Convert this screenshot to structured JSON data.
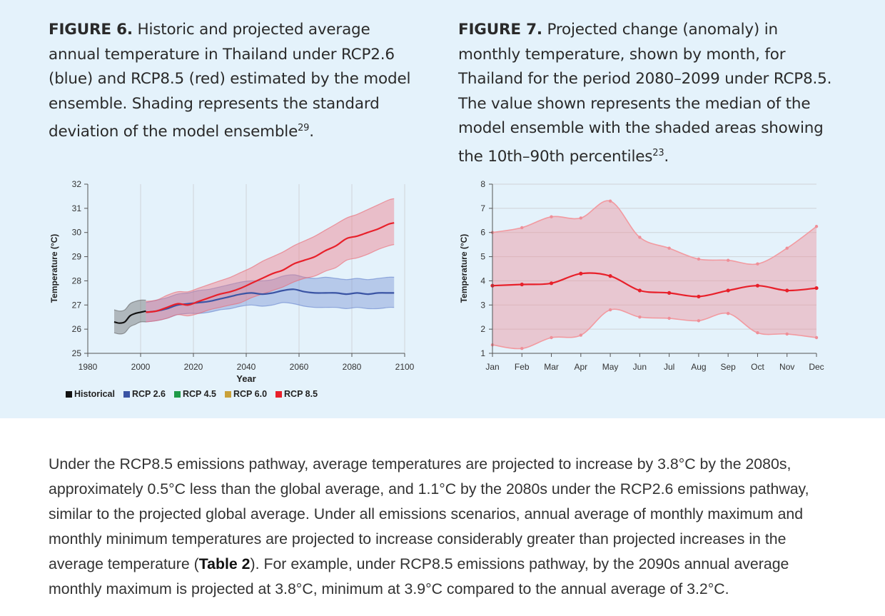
{
  "figure6": {
    "caption_label": "FIGURE 6.",
    "caption_text": "Historic and projected average annual temperature in Thailand under RCP2.6 (blue) and RCP8.5 (red) estimated by the model ensemble. Shading represents the standard deviation of the model ensemble",
    "caption_sup": "29",
    "caption_end": "."
  },
  "figure7": {
    "caption_label": "FIGURE 7.",
    "caption_text": "Projected change (anomaly) in monthly temperature, shown by month, for Thailand for the period 2080–2099 under RCP8.5. The value shown represents the median of the model ensemble with the shaded areas showing the 10th–90th percentiles",
    "caption_sup": "23",
    "caption_end": "."
  },
  "chart_data": [
    {
      "type": "line",
      "xlabel": "Year",
      "ylabel": "Temperature (°C)",
      "xlim": [
        1980,
        2100
      ],
      "ylim": [
        25,
        32
      ],
      "xticks": [
        1980,
        2000,
        2020,
        2040,
        2060,
        2080,
        2100
      ],
      "yticks": [
        25,
        26,
        27,
        28,
        29,
        30,
        31,
        32
      ],
      "grid": "vertical",
      "legend_position": "bottom",
      "legend": [
        {
          "name": "Historical",
          "color": "#111111"
        },
        {
          "name": "RCP 2.6",
          "color": "#3a54a4"
        },
        {
          "name": "RCP 4.5",
          "color": "#1e9a48"
        },
        {
          "name": "RCP 6.0",
          "color": "#c9a13a"
        },
        {
          "name": "RCP 8.5",
          "color": "#e8202a"
        }
      ],
      "series": [
        {
          "name": "Historical",
          "color": "#111111",
          "x": [
            1990,
            1992,
            1994,
            1996,
            1998,
            2000,
            2002
          ],
          "y": [
            26.3,
            26.25,
            26.3,
            26.55,
            26.65,
            26.7,
            26.75
          ],
          "band_upper": [
            26.8,
            26.75,
            26.8,
            27.05,
            27.15,
            27.2,
            27.2
          ],
          "band_lower": [
            25.85,
            25.8,
            25.85,
            26.1,
            26.2,
            26.3,
            26.3
          ]
        },
        {
          "name": "RCP 2.6",
          "color": "#3a54a4",
          "x": [
            2002,
            2006,
            2010,
            2014,
            2018,
            2022,
            2026,
            2030,
            2034,
            2038,
            2042,
            2046,
            2050,
            2054,
            2058,
            2062,
            2066,
            2070,
            2074,
            2078,
            2082,
            2086,
            2090,
            2094,
            2096
          ],
          "y": [
            26.7,
            26.75,
            26.85,
            27.0,
            27.05,
            27.1,
            27.15,
            27.25,
            27.35,
            27.45,
            27.5,
            27.45,
            27.5,
            27.6,
            27.65,
            27.55,
            27.5,
            27.5,
            27.5,
            27.45,
            27.5,
            27.45,
            27.5,
            27.5,
            27.5
          ],
          "band_upper": [
            27.1,
            27.2,
            27.3,
            27.45,
            27.5,
            27.6,
            27.65,
            27.75,
            27.85,
            27.95,
            28.0,
            28.0,
            28.05,
            28.2,
            28.25,
            28.15,
            28.1,
            28.15,
            28.1,
            28.05,
            28.1,
            28.05,
            28.1,
            28.15,
            28.15
          ],
          "band_lower": [
            26.3,
            26.35,
            26.45,
            26.6,
            26.65,
            26.65,
            26.7,
            26.8,
            26.85,
            26.95,
            27.0,
            26.95,
            27.0,
            27.1,
            27.05,
            26.95,
            26.9,
            26.9,
            26.9,
            26.85,
            26.9,
            26.85,
            26.85,
            26.9,
            26.9
          ]
        },
        {
          "name": "RCP 8.5",
          "color": "#e8202a",
          "x": [
            2002,
            2006,
            2010,
            2014,
            2018,
            2022,
            2026,
            2030,
            2034,
            2038,
            2042,
            2046,
            2050,
            2054,
            2058,
            2062,
            2066,
            2070,
            2074,
            2078,
            2082,
            2086,
            2090,
            2094,
            2096
          ],
          "y": [
            26.7,
            26.75,
            26.9,
            27.05,
            27.0,
            27.15,
            27.3,
            27.45,
            27.55,
            27.7,
            27.9,
            28.1,
            28.3,
            28.45,
            28.7,
            28.85,
            29.0,
            29.25,
            29.45,
            29.75,
            29.85,
            30.0,
            30.15,
            30.35,
            30.4
          ],
          "band_upper": [
            27.15,
            27.2,
            27.4,
            27.55,
            27.55,
            27.7,
            27.85,
            28.0,
            28.15,
            28.35,
            28.55,
            28.8,
            29.0,
            29.2,
            29.45,
            29.65,
            29.85,
            30.1,
            30.35,
            30.6,
            30.75,
            30.95,
            31.15,
            31.35,
            31.4
          ],
          "band_lower": [
            26.3,
            26.35,
            26.45,
            26.6,
            26.55,
            26.65,
            26.8,
            26.9,
            27.0,
            27.1,
            27.3,
            27.45,
            27.6,
            27.75,
            27.95,
            28.1,
            28.2,
            28.4,
            28.55,
            28.85,
            28.95,
            29.1,
            29.3,
            29.45,
            29.5
          ]
        }
      ]
    },
    {
      "type": "line",
      "xlabel": "",
      "ylabel": "Temperature (°C)",
      "categories": [
        "Jan",
        "Feb",
        "Mar",
        "Apr",
        "May",
        "Jun",
        "Jul",
        "Aug",
        "Sep",
        "Oct",
        "Nov",
        "Dec"
      ],
      "ylim": [
        1,
        8
      ],
      "yticks": [
        1,
        2,
        3,
        4,
        5,
        6,
        7,
        8
      ],
      "grid": "horizontal",
      "series": [
        {
          "name": "Median",
          "color": "#e8202a",
          "values": [
            3.8,
            3.85,
            3.9,
            4.3,
            4.2,
            3.6,
            3.5,
            3.35,
            3.6,
            3.8,
            3.6,
            3.7
          ]
        },
        {
          "name": "90th percentile",
          "color": "#f29aa0",
          "values": [
            6.0,
            6.2,
            6.65,
            6.6,
            7.3,
            5.8,
            5.35,
            4.9,
            4.85,
            4.7,
            5.35,
            6.25
          ]
        },
        {
          "name": "10th percentile",
          "color": "#f29aa0",
          "values": [
            1.35,
            1.2,
            1.65,
            1.75,
            2.8,
            2.5,
            2.45,
            2.35,
            2.65,
            1.85,
            1.8,
            1.65
          ]
        }
      ]
    }
  ],
  "body": {
    "text_before": "Under the RCP8.5 emissions pathway, average temperatures are projected to increase by 3.8°C by the 2080s, approximately 0.5°C less than the global average, and 1.1°C by the 2080s under the RCP2.6 emissions pathway, similar to the projected global average. Under all emissions scenarios, annual average of monthly maximum and monthly minimum temperatures are projected to increase considerably greater than projected increases in the average temperature (",
    "bold_ref": "Table 2",
    "text_after": "). For example, under RCP8.5 emissions pathway, by the 2090s annual average monthly maximum is projected at 3.8°C, minimum at 3.9°C compared to the annual average of 3.2°C."
  }
}
